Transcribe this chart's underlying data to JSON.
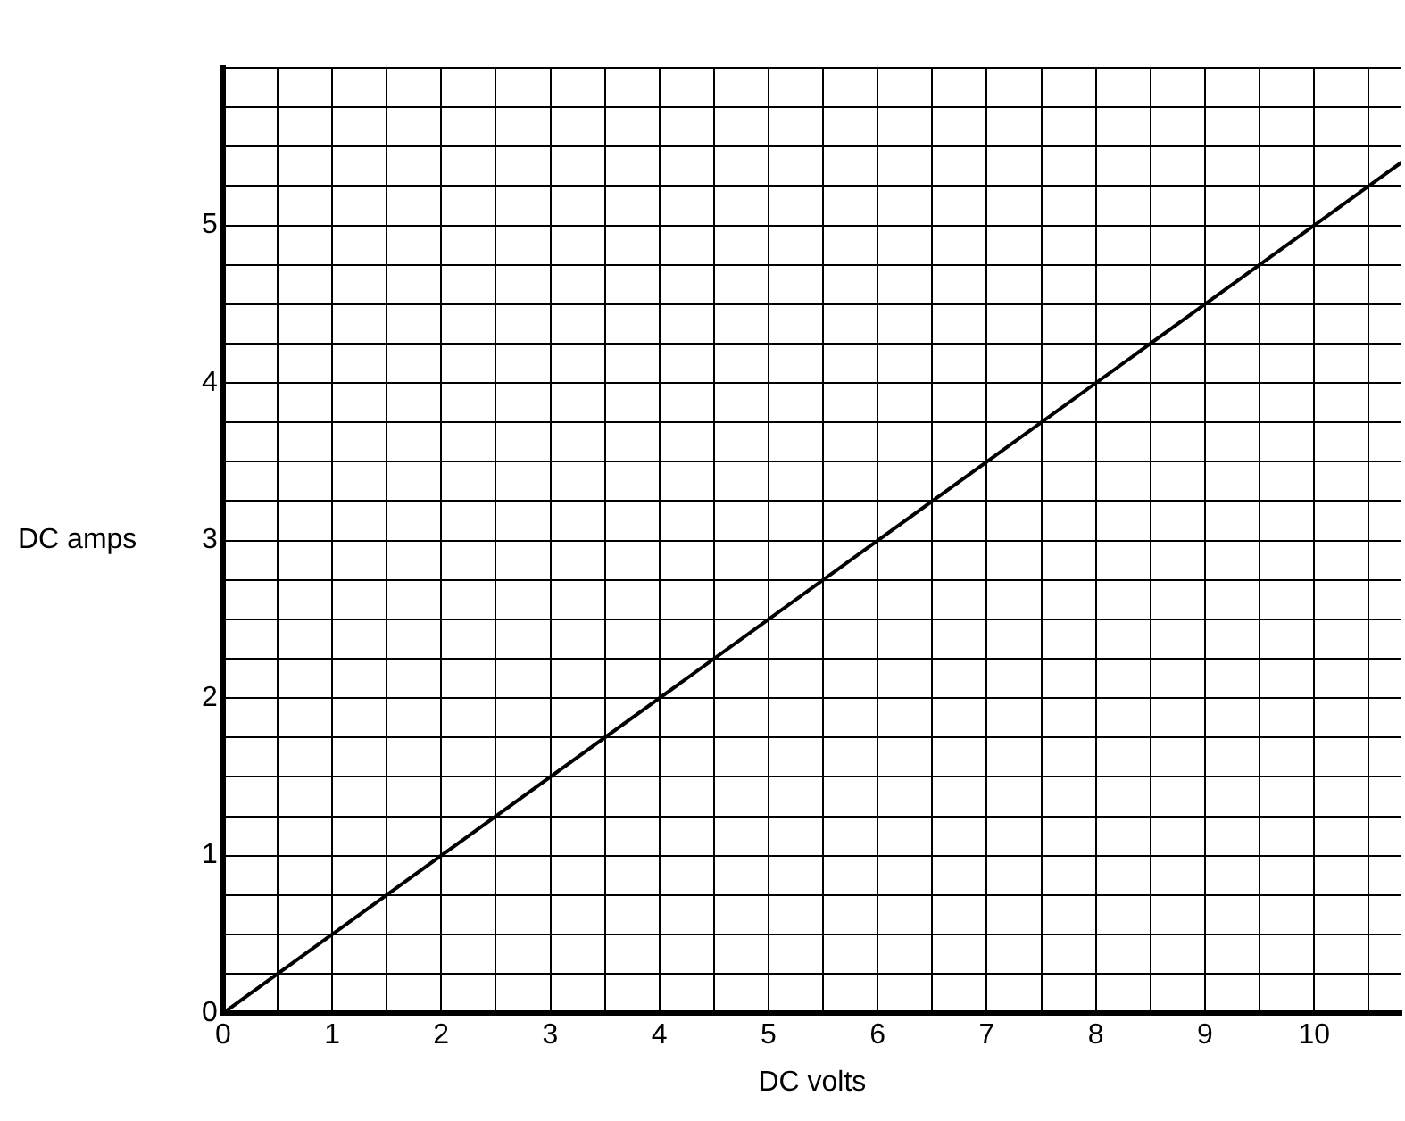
{
  "chart_data": {
    "type": "line",
    "xlabel": "DC volts",
    "ylabel": "DC amps",
    "x": [
      0,
      10.8
    ],
    "series": [
      {
        "color": "#000000",
        "values": [
          0,
          5.4
        ]
      }
    ],
    "xlim": [
      0,
      10.8
    ],
    "ylim": [
      0,
      6
    ],
    "xticks": [
      0,
      {
        "value": 0.5,
        "label": null
      },
      1,
      {
        "value": 1.5,
        "label": null
      },
      2,
      {
        "value": 2.5,
        "label": null
      },
      3,
      {
        "value": 3.5,
        "label": null
      },
      4,
      {
        "value": 4.5,
        "label": null
      },
      5,
      {
        "value": 5.5,
        "label": null
      },
      6,
      {
        "value": 6.5,
        "label": null
      },
      7,
      {
        "value": 7.5,
        "label": null
      },
      8,
      {
        "value": 8.5,
        "label": null
      },
      9,
      {
        "value": 9.5,
        "label": null
      },
      10,
      {
        "value": 10.5,
        "label": null
      }
    ],
    "yticks": [
      0,
      {
        "value": 0.25,
        "label": null
      },
      {
        "value": 0.5,
        "label": null
      },
      {
        "value": 0.75,
        "label": null
      },
      1,
      {
        "value": 1.25,
        "label": null
      },
      {
        "value": 1.5,
        "label": null
      },
      {
        "value": 1.75,
        "label": null
      },
      2,
      {
        "value": 2.25,
        "label": null
      },
      {
        "value": 2.5,
        "label": null
      },
      {
        "value": 2.75,
        "label": null
      },
      3,
      {
        "value": 3.25,
        "label": null
      },
      {
        "value": 3.5,
        "label": null
      },
      {
        "value": 3.75,
        "label": null
      },
      4,
      {
        "value": 4.25,
        "label": null
      },
      {
        "value": 4.5,
        "label": null
      },
      {
        "value": 4.75,
        "label": null
      },
      5,
      {
        "value": 5.25,
        "label": null
      },
      {
        "value": 5.5,
        "label": null
      },
      {
        "value": 5.75,
        "label": null
      },
      {
        "value": 6,
        "label": null
      }
    ],
    "grid": true,
    "marker": "none",
    "line_style": "solid",
    "legend": false
  }
}
